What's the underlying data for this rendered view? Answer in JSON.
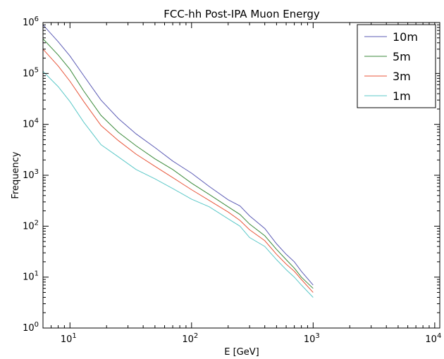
{
  "chart_data": {
    "type": "line",
    "title": "FCC-hh Post-IPA Muon Energy",
    "xlabel": "E [GeV]",
    "ylabel": "Frequency",
    "xscale": "log",
    "yscale": "log",
    "xlim": [
      6,
      11000
    ],
    "ylim": [
      1,
      1000000
    ],
    "grid": false,
    "legend_position": "top-right",
    "x_ticks": [
      {
        "value": 10,
        "base": "10",
        "exp": "1"
      },
      {
        "value": 100,
        "base": "10",
        "exp": "2"
      },
      {
        "value": 1000,
        "base": "10",
        "exp": "3"
      },
      {
        "value": 10000,
        "base": "10",
        "exp": "4"
      }
    ],
    "y_ticks": [
      {
        "value": 1,
        "base": "10",
        "exp": "0"
      },
      {
        "value": 10,
        "base": "10",
        "exp": "1"
      },
      {
        "value": 100,
        "base": "10",
        "exp": "2"
      },
      {
        "value": 1000,
        "base": "10",
        "exp": "3"
      },
      {
        "value": 10000,
        "base": "10",
        "exp": "4"
      },
      {
        "value": 100000,
        "base": "10",
        "exp": "5"
      },
      {
        "value": 1000000,
        "base": "10",
        "exp": "6"
      }
    ],
    "series": [
      {
        "name": "10m",
        "color": "#5b5bb5",
        "points": [
          [
            6,
            900000
          ],
          [
            8,
            420000
          ],
          [
            10,
            220000
          ],
          [
            13,
            90000
          ],
          [
            18,
            30000
          ],
          [
            25,
            13000
          ],
          [
            35,
            6500
          ],
          [
            50,
            3500
          ],
          [
            70,
            1900
          ],
          [
            100,
            1100
          ],
          [
            140,
            600
          ],
          [
            200,
            330
          ],
          [
            250,
            250
          ],
          [
            300,
            160
          ],
          [
            400,
            90
          ],
          [
            500,
            45
          ],
          [
            600,
            28
          ],
          [
            700,
            20
          ],
          [
            800,
            13
          ],
          [
            1000,
            7
          ]
        ]
      },
      {
        "name": "5m",
        "color": "#3a8a3a",
        "points": [
          [
            6,
            480000
          ],
          [
            8,
            230000
          ],
          [
            10,
            120000
          ],
          [
            13,
            45000
          ],
          [
            18,
            15000
          ],
          [
            25,
            7000
          ],
          [
            35,
            3800
          ],
          [
            50,
            2100
          ],
          [
            70,
            1300
          ],
          [
            100,
            700
          ],
          [
            140,
            420
          ],
          [
            200,
            240
          ],
          [
            250,
            170
          ],
          [
            300,
            110
          ],
          [
            400,
            65
          ],
          [
            500,
            35
          ],
          [
            600,
            22
          ],
          [
            700,
            15
          ],
          [
            800,
            10
          ],
          [
            1000,
            6
          ]
        ]
      },
      {
        "name": "3m",
        "color": "#e8553a",
        "points": [
          [
            6,
            300000
          ],
          [
            8,
            140000
          ],
          [
            10,
            70000
          ],
          [
            13,
            28000
          ],
          [
            18,
            9500
          ],
          [
            25,
            4800
          ],
          [
            35,
            2600
          ],
          [
            50,
            1500
          ],
          [
            70,
            900
          ],
          [
            100,
            520
          ],
          [
            140,
            320
          ],
          [
            200,
            190
          ],
          [
            250,
            130
          ],
          [
            300,
            85
          ],
          [
            400,
            52
          ],
          [
            500,
            28
          ],
          [
            600,
            18
          ],
          [
            700,
            13
          ],
          [
            800,
            9
          ],
          [
            1000,
            5
          ]
        ]
      },
      {
        "name": "1m",
        "color": "#5bc8c8",
        "points": [
          [
            6,
            110000
          ],
          [
            8,
            55000
          ],
          [
            10,
            28000
          ],
          [
            13,
            11000
          ],
          [
            18,
            4000
          ],
          [
            25,
            2300
          ],
          [
            35,
            1300
          ],
          [
            50,
            850
          ],
          [
            70,
            550
          ],
          [
            100,
            340
          ],
          [
            140,
            240
          ],
          [
            200,
            140
          ],
          [
            250,
            100
          ],
          [
            300,
            60
          ],
          [
            400,
            40
          ],
          [
            500,
            22
          ],
          [
            600,
            14
          ],
          [
            700,
            10
          ],
          [
            800,
            7
          ],
          [
            1000,
            4
          ]
        ]
      }
    ]
  }
}
